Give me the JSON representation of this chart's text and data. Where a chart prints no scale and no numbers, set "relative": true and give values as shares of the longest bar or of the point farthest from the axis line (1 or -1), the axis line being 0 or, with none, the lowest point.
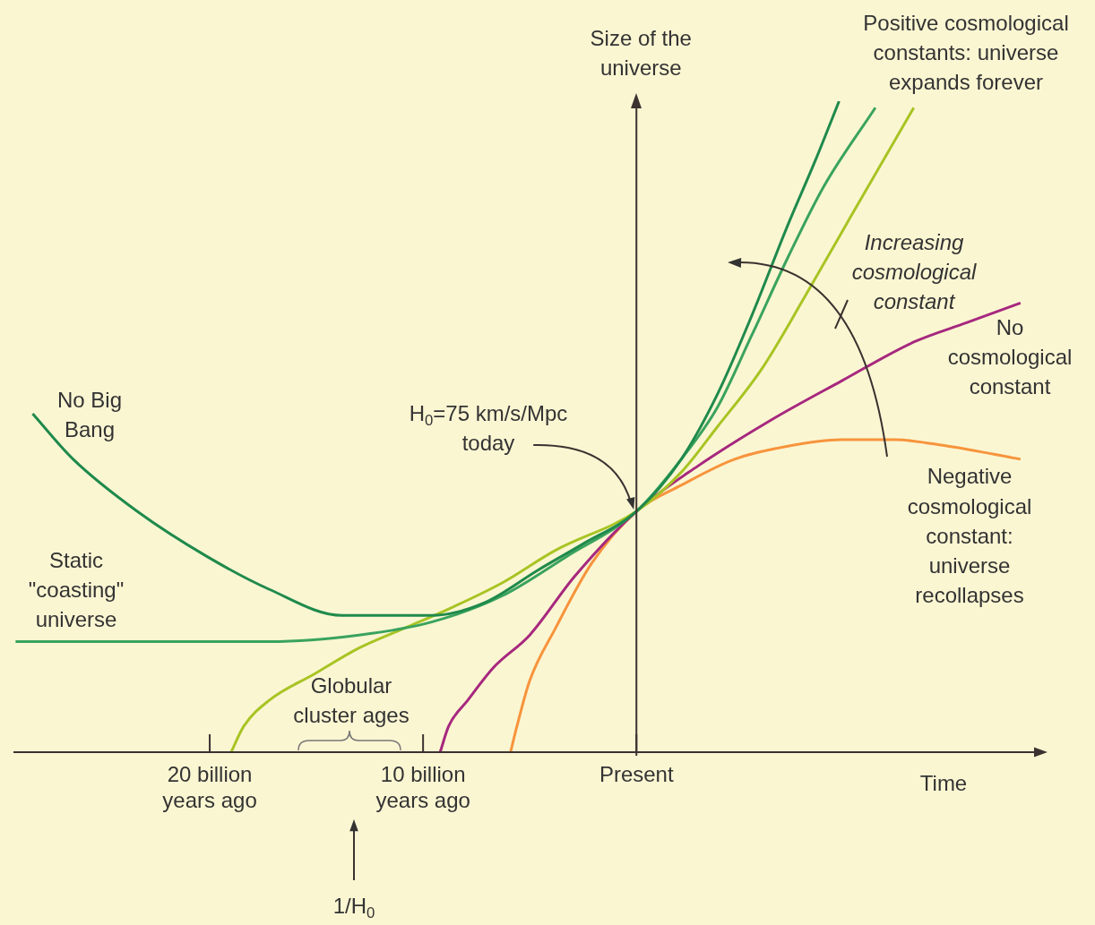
{
  "chart_data": {
    "type": "line",
    "relative": true,
    "xlabel": "Time",
    "ylabel": "Size of the universe",
    "xlim": [
      29.2,
      -19.1
    ],
    "xticks": [
      {
        "value": 20,
        "label": "20 billion years ago"
      },
      {
        "value": 10,
        "label": "10 billion years ago"
      },
      {
        "value": 0,
        "label": "Present"
      }
    ],
    "series": [
      {
        "color": "#1f8a4c",
        "x": [
          28.3,
          26.4,
          23.4,
          20.1,
          17.2,
          13.8,
          11.7,
          9.6,
          7.1,
          4.6,
          2.5,
          0,
          -2.1,
          -3.8,
          -5.4,
          -7.1,
          -8.4,
          -9.5
        ],
        "values": [
          0.52,
          0.45,
          0.37,
          0.3,
          0.25,
          0.21,
          0.21,
          0.21,
          0.23,
          0.28,
          0.32,
          0.37,
          0.45,
          0.55,
          0.67,
          0.81,
          0.91,
          1
        ]
      },
      {
        "color": "#3aa35e",
        "x": [
          29.1,
          25.5,
          21.3,
          17.2,
          13,
          9.6,
          6.3,
          3.3,
          0,
          -2.1,
          -3.8,
          -5.4,
          -7.1,
          -8.8,
          -11.2
        ],
        "values": [
          0.17,
          0.17,
          0.17,
          0.17,
          0.18,
          0.2,
          0.24,
          0.3,
          0.37,
          0.45,
          0.53,
          0.64,
          0.76,
          0.87,
          0.99
        ]
      },
      {
        "color": "#a8c424",
        "x": [
          19,
          18.4,
          17.2,
          15.1,
          13,
          10.9,
          8.8,
          6.3,
          3.8,
          0,
          -2.1,
          -3.8,
          -5.9,
          -7.9,
          -10,
          -13
        ],
        "values": [
          0,
          0.04,
          0.08,
          0.12,
          0.16,
          0.19,
          0.22,
          0.26,
          0.31,
          0.37,
          0.43,
          0.5,
          0.59,
          0.7,
          0.82,
          0.99
        ]
      },
      {
        "color": "#a6287e",
        "x": [
          9.2,
          8.8,
          7.9,
          6.7,
          5,
          2.9,
          0,
          -2.9,
          -6.3,
          -9.6,
          -13,
          -15.5,
          -18
        ],
        "values": [
          0,
          0.04,
          0.08,
          0.13,
          0.18,
          0.27,
          0.37,
          0.44,
          0.51,
          0.57,
          0.63,
          0.66,
          0.69
        ]
      },
      {
        "color": "#f7943c",
        "x": [
          5.9,
          5.6,
          5,
          3.8,
          2.1,
          0,
          -2.1,
          -4.6,
          -7.1,
          -9.6,
          -12.1,
          -14.6,
          -18
        ],
        "values": [
          0,
          0.04,
          0.11,
          0.19,
          0.29,
          0.37,
          0.41,
          0.45,
          0.47,
          0.48,
          0.48,
          0.47,
          0.45
        ]
      }
    ],
    "annotations": [
      "Positive cosmological constants: universe expands forever",
      "Increasing cosmological constant",
      "No Big Bang",
      "Static \"coasting\" universe",
      "H$_{0}$=75 km/s/Mpc today",
      "No cosmological constant",
      "Negative cosmological constant: universe recollapses",
      "1/H$_{0}$",
      "Globular cluster ages"
    ]
  }
}
